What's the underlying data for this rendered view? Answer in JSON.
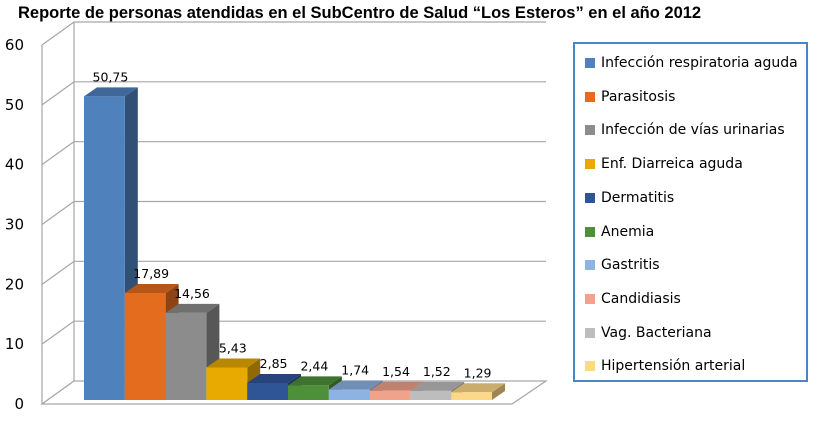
{
  "chart_data": {
    "type": "bar",
    "title": "Reporte de personas atendidas en el SubCentro de Salud “Los Esteros” en el año 2012",
    "xlabel": "",
    "ylabel": "",
    "ylim": [
      0,
      60
    ],
    "yticks": [
      0,
      10,
      20,
      30,
      40,
      50,
      60
    ],
    "grid": true,
    "legend_position": "right",
    "categories": [
      "Infección respiratoria aguda",
      "Parasitosis",
      "Infección de vías urinarias",
      "Enf. Diarreica aguda",
      "Dermatitis",
      "Anemia",
      "Gastritis",
      "Candidiasis",
      "Vag. Bacteriana",
      "Hipertensión arterial"
    ],
    "values": [
      50.75,
      17.89,
      14.56,
      5.43,
      2.85,
      2.44,
      1.74,
      1.54,
      1.52,
      1.29
    ],
    "data_labels": [
      "50,75",
      "17,89",
      "14,56",
      "5,43",
      "2,85",
      "2,44",
      "1,74",
      "1,54",
      "1,52",
      "1,29"
    ],
    "colors": [
      "#4f81bd",
      "#e46c1f",
      "#8c8c8c",
      "#e8a900",
      "#2f5597",
      "#4e8f3a",
      "#8db3e2",
      "#f0a38a",
      "#bdbdbd",
      "#fdd887"
    ]
  }
}
